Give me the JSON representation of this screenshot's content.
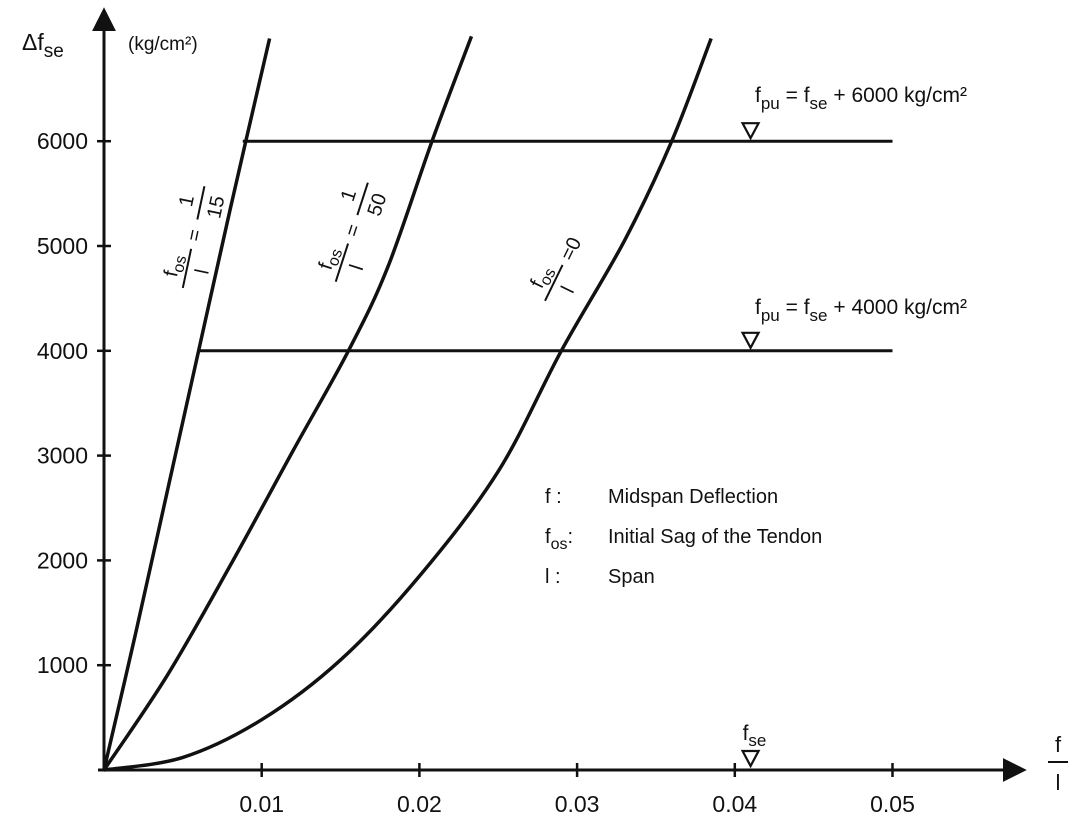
{
  "chart_data": {
    "type": "line",
    "xlabel_num": "f",
    "xlabel_den": "l",
    "ylabel_main": "Δf",
    "ylabel_sub": "se",
    "yunit": "(kg/cm²)",
    "xlim": [
      0,
      0.05
    ],
    "ylim": [
      0,
      7000
    ],
    "xticks": [
      0.01,
      0.02,
      0.03,
      0.04,
      0.05
    ],
    "xtick_labels": [
      "0.01",
      "0.02",
      "0.03",
      "0.04",
      "0.05"
    ],
    "yticks": [
      1000,
      2000,
      3000,
      4000,
      5000,
      6000
    ],
    "ytick_labels": [
      "1000",
      "2000",
      "3000",
      "4000",
      "5000",
      "6000"
    ],
    "grid": false,
    "series": [
      {
        "name": "f_os/l = 1/15",
        "x": [
          0,
          0.002,
          0.004,
          0.006,
          0.008,
          0.0105
        ],
        "y": [
          0,
          1300,
          2650,
          4000,
          5350,
          6980
        ]
      },
      {
        "name": "f_os/l = 1/50",
        "x": [
          0,
          0.004,
          0.008,
          0.012,
          0.0155,
          0.018,
          0.0208,
          0.0233
        ],
        "y": [
          0,
          900,
          1950,
          3050,
          4000,
          4800,
          6000,
          7000
        ]
      },
      {
        "name": "f_os/l = 0",
        "x": [
          0,
          0.005,
          0.01,
          0.015,
          0.02,
          0.025,
          0.029,
          0.033,
          0.036,
          0.0385
        ],
        "y": [
          0,
          120,
          480,
          1050,
          1850,
          2850,
          4000,
          5050,
          6000,
          6980
        ]
      }
    ],
    "hlines": [
      {
        "y": 6000,
        "x_start": 0.0088,
        "x_end": 0.05,
        "label_pre": "f",
        "label_sub1": "pu",
        "label_mid": " = f",
        "label_sub2": "se",
        "label_post": " + 6000 kg/cm²",
        "marker_x": 0.041
      },
      {
        "y": 4000,
        "x_start": 0.006,
        "x_end": 0.05,
        "label_pre": "f",
        "label_sub1": "pu",
        "label_mid": " = f",
        "label_sub2": "se",
        "label_post": " + 4000 kg/cm²",
        "marker_x": 0.041
      }
    ],
    "fse_marker": {
      "x": 0.041,
      "label": "f",
      "sub": "se"
    },
    "curve_labels": [
      {
        "num": "f",
        "num_sub": "os",
        "den": "l",
        "rhs": "= 1/15",
        "rhs_num": "1",
        "rhs_den": "15"
      },
      {
        "num": "f",
        "num_sub": "os",
        "den": "l",
        "rhs": "= 1/50",
        "rhs_num": "1",
        "rhs_den": "50"
      },
      {
        "num": "f",
        "num_sub": "os",
        "den": "l",
        "rhs": "=0"
      }
    ],
    "legend": [
      {
        "key": "f :",
        "key_sub": "",
        "text": "Midspan Deflection"
      },
      {
        "key": "f",
        "key_sub": "os",
        "text": "Initial Sag of the Tendon"
      },
      {
        "key": "l :",
        "key_sub": "",
        "text": "Span"
      }
    ]
  }
}
